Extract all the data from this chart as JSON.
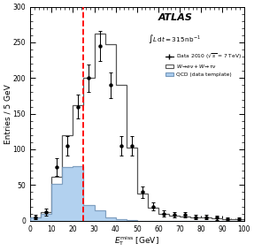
{
  "xlabel": "$E_{\\mathrm{T}}^{\\mathrm{miss}}$ [GeV]",
  "ylabel": "Entries / 5 GeV",
  "xlim": [
    0,
    100
  ],
  "ylim": [
    0,
    300
  ],
  "bin_edges": [
    0,
    5,
    10,
    15,
    20,
    25,
    30,
    35,
    40,
    45,
    50,
    55,
    60,
    65,
    70,
    75,
    80,
    85,
    90,
    95,
    100
  ],
  "mc_values": [
    5,
    12,
    62,
    120,
    162,
    200,
    262,
    248,
    190,
    103,
    38,
    18,
    10,
    7,
    6,
    5,
    4,
    3,
    2,
    2
  ],
  "qcd_values": [
    5,
    9,
    52,
    75,
    76,
    22,
    14,
    5,
    2,
    1,
    0,
    0,
    0,
    0,
    0,
    0,
    0,
    0,
    0,
    0
  ],
  "data_x": [
    2.5,
    7.5,
    12.5,
    17.5,
    22.5,
    27.5,
    32.5,
    37.5,
    42.5,
    47.5,
    52.5,
    57.5,
    62.5,
    67.5,
    72.5,
    77.5,
    82.5,
    87.5,
    92.5,
    97.5
  ],
  "data_y": [
    5,
    12,
    75,
    105,
    160,
    200,
    245,
    190,
    105,
    105,
    40,
    20,
    10,
    8,
    8,
    5,
    5,
    4,
    2,
    2
  ],
  "data_yerr": [
    3,
    5,
    12,
    14,
    17,
    19,
    21,
    18,
    14,
    14,
    8,
    6,
    4,
    4,
    4,
    3,
    3,
    3,
    2,
    2
  ],
  "vline_x": 25,
  "mc_facecolor": "white",
  "mc_edgecolor": "#555555",
  "qcd_facecolor": "#aaccee",
  "qcd_edgecolor": "#7799bb",
  "data_color": "black",
  "vline_color": "red",
  "atlas_label": "ATLAS",
  "lumi_label": "$\\int L\\,\\mathrm{d}t = 315\\,\\mathrm{nb}^{-1}$",
  "legend_data": "Data 2010 ($\\sqrt{s}$ = 7 TeV)",
  "legend_mc": "$W\\!\\rightarrow\\! e\\nu + W\\!\\rightarrow\\!\\tau\\nu$",
  "legend_qcd": "QCD (data template)",
  "xticks": [
    0,
    10,
    20,
    30,
    40,
    50,
    60,
    70,
    80,
    90,
    100
  ],
  "yticks": [
    0,
    50,
    100,
    150,
    200,
    250,
    300
  ]
}
